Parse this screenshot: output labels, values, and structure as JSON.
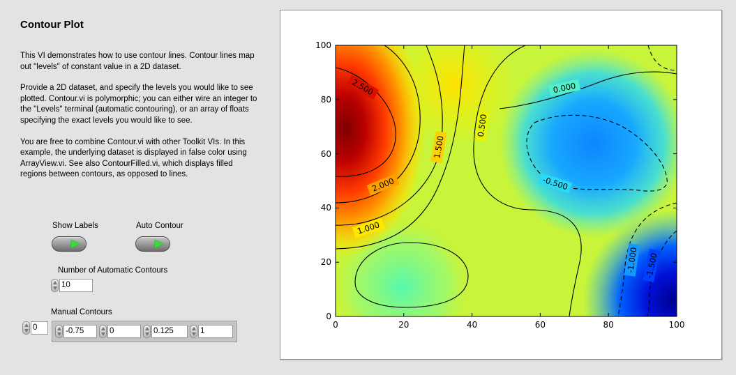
{
  "title": "Contour Plot",
  "description": [
    "This VI demonstrates how to use contour lines.  Contour lines map out \"levels\" of constant value in a 2D dataset.",
    "Provide a 2D dataset, and specify the levels you would like to see plotted.  Contour.vi is polymorphic; you can either wire an integer to the \"Levels\" terminal (automatic contouring), or an array of floats specifying the exact levels you would like to see.",
    "You are free to combine Contour.vi with other Toolkit VIs.  In this example, the underlying dataset is displayed in false color using ArrayView.vi.  See also ContourFilled.vi, which displays filled regions between contours, as opposed to lines."
  ],
  "controls": {
    "show_labels": {
      "label": "Show Labels",
      "state": "on"
    },
    "auto_contour": {
      "label": "Auto Contour",
      "state": "on"
    },
    "auto_count": {
      "label": "Number of Automatic Contours",
      "value": "10"
    },
    "manual": {
      "label": "Manual Contours",
      "index": "0",
      "values": [
        "-0.75",
        "0",
        "0.125",
        "1"
      ]
    }
  },
  "chart_data": {
    "type": "heatmap",
    "colormap": "jet",
    "xlim": [
      0,
      100
    ],
    "ylim": [
      0,
      100
    ],
    "x_ticks": [
      "0",
      "20",
      "40",
      "60",
      "80",
      "100"
    ],
    "y_ticks": [
      "0",
      "20",
      "40",
      "60",
      "80",
      "100"
    ],
    "grid": false,
    "contour_labels": [
      "2.500",
      "2.000",
      "1.500",
      "1.000",
      "0.500",
      "0.000",
      "-0.500",
      "-1.000",
      "-1.500"
    ]
  }
}
